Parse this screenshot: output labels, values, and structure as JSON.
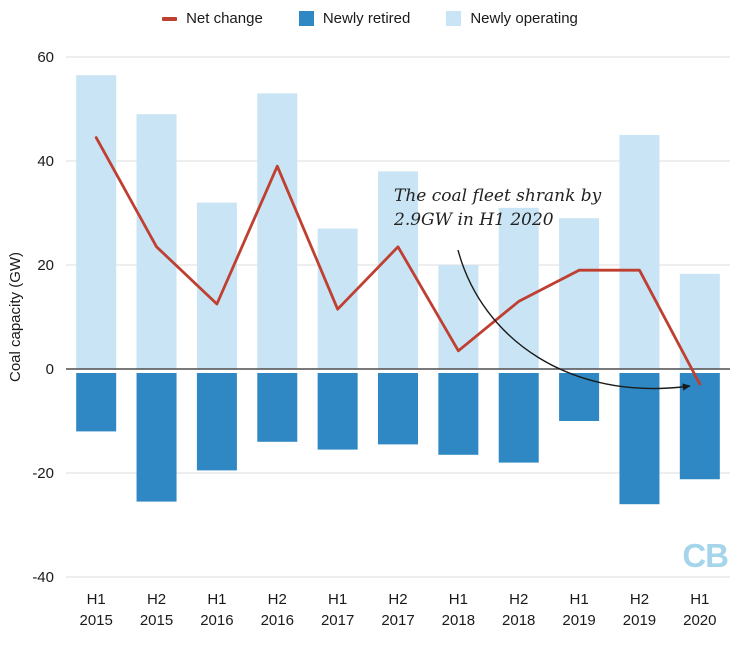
{
  "legend": {
    "items": [
      {
        "label": "Net change",
        "swatch": "line",
        "color": "#bf3f31"
      },
      {
        "label": "Newly retired",
        "swatch": "square",
        "color": "#2f88c4"
      },
      {
        "label": "Newly operating",
        "swatch": "square",
        "color": "#c9e4f4"
      }
    ]
  },
  "chart_data": {
    "type": "bar",
    "title": "",
    "categories": [
      "H1 2015",
      "H2 2015",
      "H1 2016",
      "H2 2016",
      "H1 2017",
      "H2 2017",
      "H1 2018",
      "H2 2018",
      "H1 2019",
      "H2 2019",
      "H1 2020"
    ],
    "series": [
      {
        "name": "Newly operating",
        "kind": "bar",
        "color": "#c9e4f4",
        "values": [
          56.5,
          49,
          32,
          53,
          27,
          38,
          20,
          31,
          29,
          45,
          18.3
        ]
      },
      {
        "name": "Newly retired",
        "kind": "bar",
        "color": "#2f88c4",
        "values": [
          -12,
          -25.5,
          -19.5,
          -14,
          -15.5,
          -14.5,
          -16.5,
          -18,
          -10,
          -26,
          -21.2
        ]
      },
      {
        "name": "Net change",
        "kind": "line",
        "color": "#bf3f31",
        "values": [
          44.5,
          23.5,
          12.5,
          39,
          11.5,
          23.5,
          3.5,
          13,
          19,
          19,
          -2.9
        ]
      }
    ],
    "xlabel": "",
    "ylabel": "Coal capacity (GW)",
    "ylim": [
      -40,
      60
    ],
    "yticks": [
      60,
      40,
      20,
      0,
      -20,
      -40
    ],
    "grid": true,
    "legend_position": "top",
    "annotation": {
      "line1": "The coal fleet shrank by",
      "line2": "2.9GW in H1 2020"
    }
  },
  "logo": {
    "text": "CB",
    "color": "#a5d5eb"
  }
}
